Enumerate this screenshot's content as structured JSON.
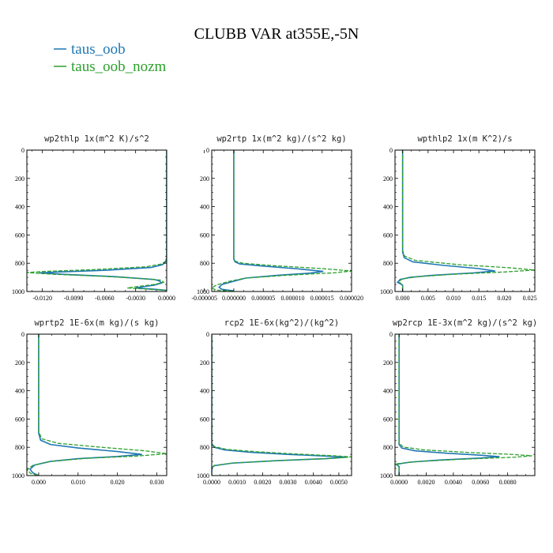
{
  "figure": {
    "title": "CLUBB VAR at355E,-5N",
    "colors": {
      "series1": "#1f77b4",
      "series2": "#2ca02c"
    },
    "legend": [
      {
        "label": "taus_oob",
        "color": "#1f77b4",
        "style": "solid"
      },
      {
        "label": "taus_oob_nozm",
        "color": "#2ca02c",
        "style": "solid"
      }
    ]
  },
  "chart_data": [
    {
      "type": "line",
      "title": "wp2thlp  1x(m^2 K)/s^2",
      "xlim": [
        -0.0135,
        0.0
      ],
      "ylim": [
        1000,
        0
      ],
      "x_ticks": [
        -0.012,
        -0.009,
        -0.006,
        -0.003,
        0.0
      ],
      "x_tick_labels": [
        "-0.0120",
        "-0.0090",
        "-0.0060",
        "-0.0030",
        "0.0000"
      ],
      "y_ticks": [
        0,
        200,
        400,
        600,
        800,
        1000
      ],
      "y_tick_labels": [
        "0",
        "200",
        "400",
        "600",
        "800",
        "1000"
      ],
      "series": [
        {
          "name": "taus_oob",
          "style": "solid",
          "points": [
            [
              0,
              0
            ],
            [
              0,
              760
            ],
            [
              -0.0001,
              790
            ],
            [
              -0.0004,
              810
            ],
            [
              -0.0015,
              830
            ],
            [
              -0.006,
              850
            ],
            [
              -0.0105,
              862
            ],
            [
              -0.0123,
              868
            ],
            [
              -0.01,
              878
            ],
            [
              -0.005,
              895
            ],
            [
              -0.0012,
              915
            ],
            [
              -0.0007,
              925
            ],
            [
              -0.0005,
              940
            ],
            [
              -0.0012,
              955
            ],
            [
              -0.0022,
              965
            ],
            [
              -0.003,
              975
            ],
            [
              -0.001,
              985
            ],
            [
              0,
              992
            ]
          ]
        },
        {
          "name": "taus_oob_nozm",
          "style": "dashed",
          "points": [
            [
              0,
              0
            ],
            [
              0,
              760
            ],
            [
              -0.0001,
              785
            ],
            [
              -0.0005,
              805
            ],
            [
              -0.002,
              825
            ],
            [
              -0.007,
              845
            ],
            [
              -0.0118,
              858
            ],
            [
              -0.0135,
              866
            ],
            [
              -0.011,
              878
            ],
            [
              -0.006,
              893
            ],
            [
              -0.002,
              910
            ],
            [
              -0.0005,
              920
            ],
            [
              -0.0003,
              935
            ],
            [
              -0.0012,
              950
            ],
            [
              -0.0025,
              962
            ],
            [
              -0.0038,
              975
            ],
            [
              -0.0015,
              985
            ],
            [
              0,
              992
            ]
          ]
        }
      ]
    },
    {
      "type": "line",
      "title": "wp2rtp  1x(m^2 kg)/(s^2 kg)",
      "xlim": [
        -3.75e-06,
        2e-05
      ],
      "ylim": [
        1000,
        0
      ],
      "x_ticks": [
        -5e-06,
        0.0,
        5e-06,
        1e-05,
        1.5e-05,
        2e-05
      ],
      "x_tick_labels": [
        "-0.000005",
        "0.000000",
        "0.000005",
        "0.000010",
        "0.000015",
        "0.000020"
      ],
      "y_ticks": [
        0,
        200,
        400,
        600,
        800,
        1000
      ],
      "y_tick_labels": [
        "0",
        "200",
        "400",
        "600",
        "800",
        "1000"
      ],
      "series": [
        {
          "name": "taus_oob",
          "style": "solid",
          "points": [
            [
              0,
              0
            ],
            [
              0,
              770
            ],
            [
              2e-07,
              790
            ],
            [
              1e-06,
              805
            ],
            [
              5e-06,
              820
            ],
            [
              1.1e-05,
              840
            ],
            [
              1.52e-05,
              858
            ],
            [
              1.3e-05,
              870
            ],
            [
              7.5e-06,
              885
            ],
            [
              2e-06,
              905
            ],
            [
              2e-07,
              925
            ],
            [
              -2e-06,
              950
            ],
            [
              -2.5e-06,
              970
            ],
            [
              -2e-06,
              985
            ],
            [
              0,
              995
            ]
          ]
        },
        {
          "name": "taus_oob_nozm",
          "style": "dashed",
          "points": [
            [
              0,
              0
            ],
            [
              0,
              765
            ],
            [
              2e-07,
              785
            ],
            [
              1.5e-06,
              800
            ],
            [
              7e-06,
              818
            ],
            [
              1.5e-05,
              838
            ],
            [
              2e-05,
              855
            ],
            [
              1.7e-05,
              868
            ],
            [
              9e-06,
              885
            ],
            [
              2e-06,
              905
            ],
            [
              -1e-06,
              930
            ],
            [
              -3e-06,
              955
            ],
            [
              -3.75e-06,
              975
            ],
            [
              -3e-06,
              990
            ],
            [
              0,
              998
            ]
          ]
        }
      ]
    },
    {
      "type": "line",
      "title": "wpthlp2  1x(m K^2)/s",
      "xlim": [
        -0.0015,
        0.026
      ],
      "ylim": [
        1000,
        0
      ],
      "x_ticks": [
        0.0,
        0.005,
        0.01,
        0.015,
        0.02,
        0.025
      ],
      "x_tick_labels": [
        "0.000",
        "0.005",
        "0.010",
        "0.015",
        "0.020",
        "0.025"
      ],
      "y_ticks": [
        0,
        200,
        400,
        600,
        800,
        1000
      ],
      "y_tick_labels": [
        "0",
        "200",
        "400",
        "600",
        "800",
        "1000"
      ],
      "series": [
        {
          "name": "taus_oob",
          "style": "solid",
          "points": [
            [
              0,
              0
            ],
            [
              0,
              720
            ],
            [
              0.0003,
              760
            ],
            [
              0.002,
              790
            ],
            [
              0.008,
              815
            ],
            [
              0.015,
              838
            ],
            [
              0.0182,
              855
            ],
            [
              0.014,
              868
            ],
            [
              0.006,
              885
            ],
            [
              0.0015,
              900
            ],
            [
              -0.0005,
              915
            ],
            [
              -0.001,
              935
            ],
            [
              0,
              955
            ],
            [
              0,
              1000
            ]
          ]
        },
        {
          "name": "taus_oob_nozm",
          "style": "dashed",
          "points": [
            [
              0,
              0
            ],
            [
              0,
              710
            ],
            [
              0.0004,
              750
            ],
            [
              0.0025,
              780
            ],
            [
              0.011,
              810
            ],
            [
              0.021,
              832
            ],
            [
              0.026,
              848
            ],
            [
              0.02,
              862
            ],
            [
              0.01,
              878
            ],
            [
              0.003,
              895
            ],
            [
              0,
              910
            ],
            [
              -0.0008,
              930
            ],
            [
              0,
              955
            ],
            [
              0,
              1000
            ]
          ]
        }
      ]
    },
    {
      "type": "line",
      "title": "wprtp2  1E-6x(m kg)/(s kg)",
      "xlim": [
        -0.003,
        0.0325
      ],
      "ylim": [
        1000,
        0
      ],
      "x_ticks": [
        0.0,
        0.01,
        0.02,
        0.03
      ],
      "x_tick_labels": [
        "0.000",
        "0.010",
        "0.020",
        "0.030"
      ],
      "y_ticks": [
        0,
        200,
        400,
        600,
        800,
        1000
      ],
      "y_tick_labels": [
        "0",
        "200",
        "400",
        "600",
        "800",
        "1000"
      ],
      "series": [
        {
          "name": "taus_oob",
          "style": "solid",
          "points": [
            [
              0,
              0
            ],
            [
              0,
              700
            ],
            [
              0.0005,
              750
            ],
            [
              0.003,
              780
            ],
            [
              0.01,
              805
            ],
            [
              0.02,
              830
            ],
            [
              0.0262,
              850
            ],
            [
              0.02,
              865
            ],
            [
              0.01,
              880
            ],
            [
              0.003,
              900
            ],
            [
              -0.001,
              925
            ],
            [
              -0.0022,
              955
            ],
            [
              -0.0015,
              980
            ],
            [
              0,
              1000
            ]
          ]
        },
        {
          "name": "taus_oob_nozm",
          "style": "dashed",
          "points": [
            [
              0,
              0
            ],
            [
              0,
              690
            ],
            [
              0.0008,
              740
            ],
            [
              0.005,
              772
            ],
            [
              0.016,
              800
            ],
            [
              0.027,
              825
            ],
            [
              0.0325,
              845
            ],
            [
              0.025,
              862
            ],
            [
              0.012,
              878
            ],
            [
              0.003,
              900
            ],
            [
              -0.0015,
              928
            ],
            [
              -0.003,
              960
            ],
            [
              -0.002,
              985
            ],
            [
              0,
              1000
            ]
          ]
        }
      ]
    },
    {
      "type": "line",
      "title": "rcp2  1E-6x(kg^2)/(kg^2)",
      "xlim": [
        0.0,
        0.0055
      ],
      "ylim": [
        1000,
        0
      ],
      "x_ticks": [
        0.0,
        0.001,
        0.002,
        0.003,
        0.004,
        0.005
      ],
      "x_tick_labels": [
        "0.0000",
        "0.0010",
        "0.0020",
        "0.0030",
        "0.0040",
        "0.0050"
      ],
      "y_ticks": [
        0,
        200,
        400,
        600,
        800,
        1000
      ],
      "y_tick_labels": [
        "0",
        "200",
        "400",
        "600",
        "800",
        "1000"
      ],
      "series": [
        {
          "name": "taus_oob",
          "style": "solid",
          "points": [
            [
              0,
              0
            ],
            [
              0,
              775
            ],
            [
              0.0001,
              800
            ],
            [
              0.0005,
              818
            ],
            [
              0.0015,
              835
            ],
            [
              0.003,
              850
            ],
            [
              0.0045,
              862
            ],
            [
              0.0053,
              870
            ],
            [
              0.0045,
              880
            ],
            [
              0.0025,
              895
            ],
            [
              0.0008,
              912
            ],
            [
              0.0001,
              930
            ],
            [
              0,
              945
            ],
            [
              0,
              1000
            ]
          ]
        },
        {
          "name": "taus_oob_nozm",
          "style": "dashed",
          "points": [
            [
              0,
              0
            ],
            [
              0,
              770
            ],
            [
              0.0001,
              795
            ],
            [
              0.0006,
              815
            ],
            [
              0.0018,
              832
            ],
            [
              0.0034,
              848
            ],
            [
              0.0048,
              860
            ],
            [
              0.0055,
              868
            ],
            [
              0.0048,
              878
            ],
            [
              0.0028,
              893
            ],
            [
              0.0009,
              910
            ],
            [
              0.0001,
              928
            ],
            [
              0,
              945
            ],
            [
              0,
              1000
            ]
          ]
        }
      ]
    },
    {
      "type": "line",
      "title": "wp2rcp  1E-3x(m^2 kg)/(s^2 kg)",
      "xlim": [
        -0.0003,
        0.01
      ],
      "ylim": [
        1000,
        0
      ],
      "x_ticks": [
        0.0,
        0.002,
        0.004,
        0.006,
        0.008
      ],
      "x_tick_labels": [
        "0.0000",
        "0.0020",
        "0.0040",
        "0.0060",
        "0.0080"
      ],
      "y_ticks": [
        0,
        200,
        400,
        600,
        800,
        1000
      ],
      "y_tick_labels": [
        "0",
        "200",
        "400",
        "600",
        "800",
        "1000"
      ],
      "series": [
        {
          "name": "taus_oob",
          "style": "solid",
          "points": [
            [
              0,
              0
            ],
            [
              0,
              780
            ],
            [
              0.0002,
              805
            ],
            [
              0.0012,
              825
            ],
            [
              0.0035,
              842
            ],
            [
              0.006,
              856
            ],
            [
              0.0074,
              866
            ],
            [
              0.006,
              876
            ],
            [
              0.003,
              890
            ],
            [
              0.0008,
              905
            ],
            [
              -0.0002,
              920
            ],
            [
              0,
              935
            ],
            [
              0,
              1000
            ]
          ]
        },
        {
          "name": "taus_oob_nozm",
          "style": "dashed",
          "points": [
            [
              0,
              0
            ],
            [
              0,
              770
            ],
            [
              0.0003,
              798
            ],
            [
              0.0018,
              818
            ],
            [
              0.005,
              836
            ],
            [
              0.0082,
              850
            ],
            [
              0.0098,
              860
            ],
            [
              0.0085,
              870
            ],
            [
              0.0045,
              885
            ],
            [
              0.0012,
              902
            ],
            [
              -0.0003,
              918
            ],
            [
              0,
              935
            ],
            [
              0,
              1000
            ]
          ]
        }
      ]
    }
  ]
}
